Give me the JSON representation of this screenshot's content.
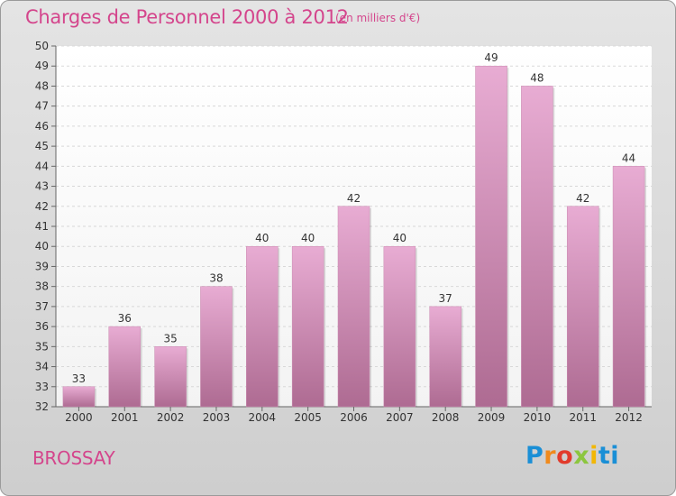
{
  "header": {
    "title": "Charges de Personnel 2000 à 2012",
    "subtitle": "(en milliers d'€)"
  },
  "footer": {
    "commune": "BROSSAY",
    "logo_text": "Proxiti"
  },
  "colors": {
    "accent": "#d4458c",
    "bar_top": "#e6a9d0",
    "bar_bottom": "#b27096"
  },
  "chart_data": {
    "type": "bar",
    "title": "Charges de Personnel 2000 à 2012",
    "subtitle": "(en milliers d'€)",
    "categories": [
      "2000",
      "2001",
      "2002",
      "2003",
      "2004",
      "2005",
      "2006",
      "2007",
      "2008",
      "2009",
      "2010",
      "2011",
      "2012"
    ],
    "values": [
      33,
      36,
      35,
      38,
      40,
      40,
      42,
      40,
      37,
      49,
      48,
      42,
      44
    ],
    "ylim": [
      32,
      50
    ],
    "yticks": [
      32,
      33,
      34,
      35,
      36,
      37,
      38,
      39,
      40,
      41,
      42,
      43,
      44,
      45,
      46,
      47,
      48,
      49,
      50
    ],
    "grid": true,
    "data_labels": true
  }
}
